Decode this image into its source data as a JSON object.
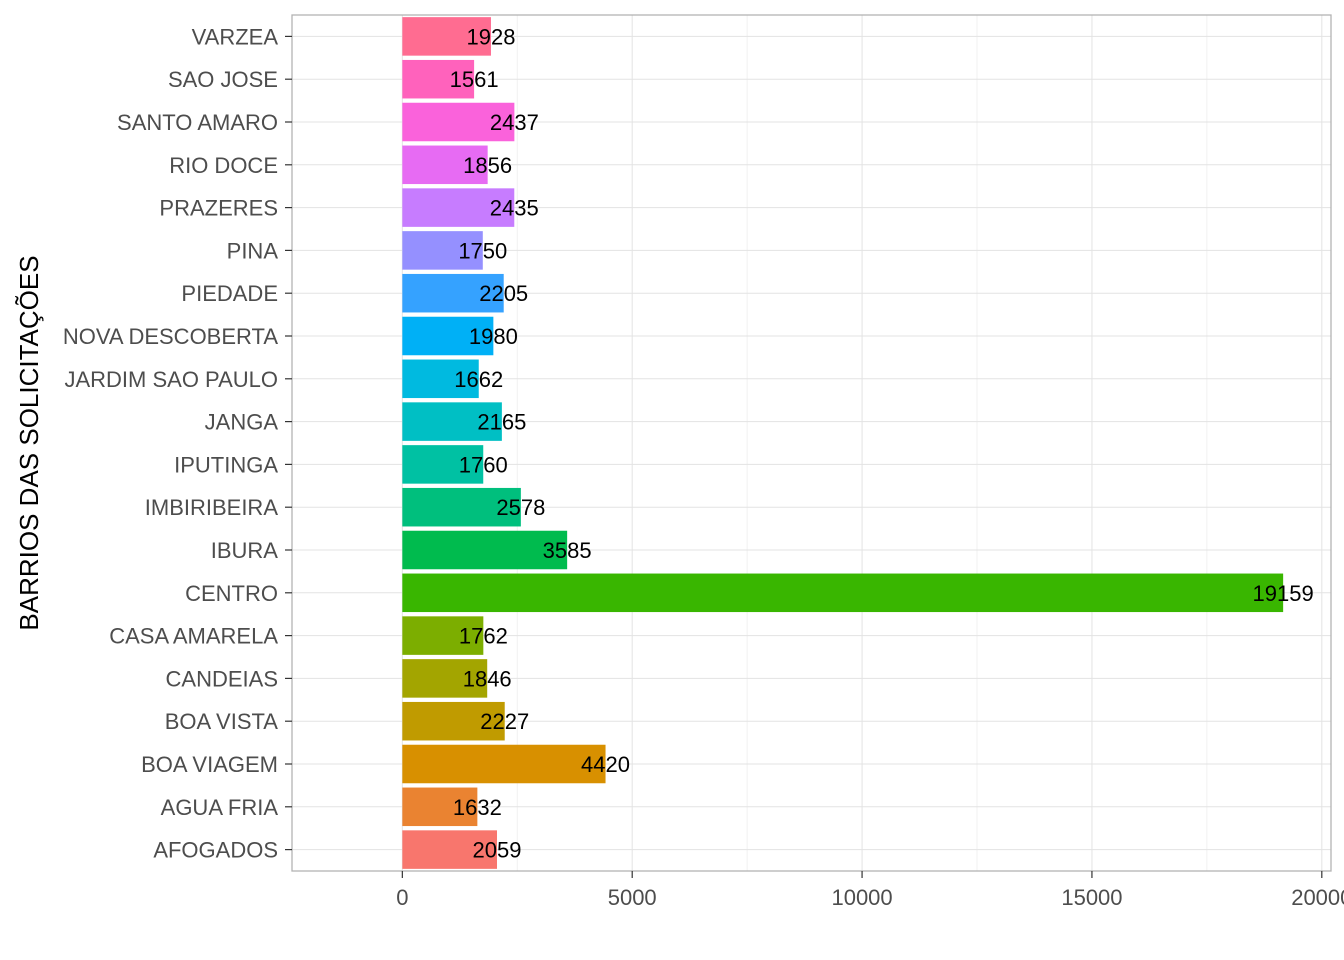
{
  "chart_data": {
    "type": "bar",
    "orientation": "horizontal",
    "title": "",
    "xlabel": "",
    "ylabel": "BARRIOS DAS SOLICITAÇÕES",
    "categories": [
      "AFOGADOS",
      "AGUA FRIA",
      "BOA VIAGEM",
      "BOA VISTA",
      "CANDEIAS",
      "CASA AMARELA",
      "CENTRO",
      "IBURA",
      "IMBIRIBEIRA",
      "IPUTINGA",
      "JANGA",
      "JARDIM SAO PAULO",
      "NOVA DESCOBERTA",
      "PIEDADE",
      "PINA",
      "PRAZERES",
      "RIO DOCE",
      "SANTO AMARO",
      "SAO JOSE",
      "VARZEA"
    ],
    "values": [
      2059,
      1632,
      4420,
      2227,
      1846,
      1762,
      19159,
      3585,
      2578,
      1760,
      2165,
      1662,
      1980,
      2205,
      1750,
      2435,
      1856,
      2437,
      1561,
      1928
    ],
    "data_labels": [
      "2059",
      "1632",
      "4420",
      "2227",
      "1846",
      "1762",
      "19159",
      "3585",
      "2578",
      "1760",
      "2165",
      "1662",
      "1980",
      "2205",
      "1750",
      "2435",
      "1856",
      "2437",
      "1561",
      "1928"
    ],
    "colors": [
      "#F8766D",
      "#EA8331",
      "#D89000",
      "#C09B00",
      "#A3A500",
      "#7CAE00",
      "#39B600",
      "#00BB4E",
      "#00BF7D",
      "#00C1A3",
      "#00BFC4",
      "#00BAE0",
      "#00B0F6",
      "#35A2FF",
      "#9590FF",
      "#C77CFF",
      "#E76BF3",
      "#FA62DB",
      "#FF62BC",
      "#FF6C91"
    ],
    "xticks": [
      0,
      5000,
      10000,
      15000,
      20000
    ],
    "xtick_labels": [
      "0",
      "5000",
      "10000",
      "15000",
      "20000"
    ],
    "xlim": [
      -2400,
      20200
    ],
    "grid": true,
    "legend": "none"
  }
}
